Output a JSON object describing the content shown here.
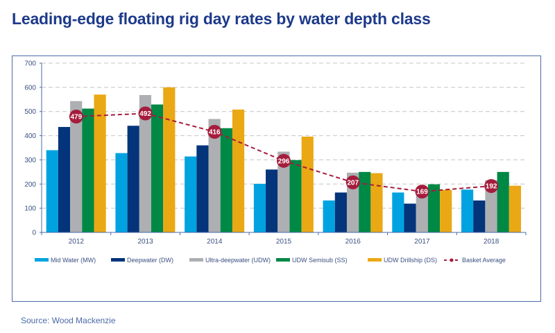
{
  "title": "Leading-edge floating rig day rates by water depth class",
  "source": "Source: Wood Mackenzie",
  "chart_data": {
    "type": "bar",
    "title": "Leading-edge floating rig day rates by water depth class",
    "categories": [
      "2012",
      "2013",
      "2014",
      "2015",
      "2016",
      "2017",
      "2018"
    ],
    "ylim": [
      0,
      700
    ],
    "yticks": [
      0,
      100,
      200,
      300,
      400,
      500,
      600,
      700
    ],
    "grid": true,
    "legend": "bottom",
    "series": [
      {
        "name": "Mid Water (MW)",
        "color": "#00a3e0",
        "values": [
          340,
          328,
          314,
          201,
          132,
          165,
          177
        ]
      },
      {
        "name": "Deepwater (DW)",
        "color": "#04347a",
        "values": [
          436,
          441,
          360,
          260,
          165,
          119,
          132
        ]
      },
      {
        "name": "Ultra-deepwater (UDW)",
        "color": "#adafb2",
        "values": [
          543,
          568,
          469,
          334,
          247,
          170,
          216
        ]
      },
      {
        "name": "UDW Semisub (SS)",
        "color": "#008845",
        "values": [
          512,
          529,
          431,
          299,
          250,
          199,
          250
        ]
      },
      {
        "name": "UDW Drillship (DS)",
        "color": "#eaa814",
        "values": [
          570,
          600,
          508,
          396,
          245,
          176,
          193
        ]
      }
    ],
    "line": {
      "name": "Basket Average",
      "type": "line",
      "color": "#a51c3c",
      "values": [
        479,
        492,
        416,
        296,
        207,
        169,
        192
      ],
      "labels": [
        "479",
        "492",
        "416",
        "296",
        "207",
        "169",
        "192"
      ]
    }
  }
}
